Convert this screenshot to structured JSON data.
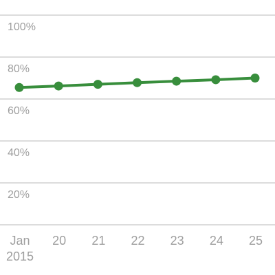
{
  "chart_data": {
    "type": "line",
    "x": [
      "Jan 19 2015",
      "Jan 20 2015",
      "Jan 21 2015",
      "Jan 22 2015",
      "Jan 23 2015",
      "Jan 24 2015",
      "Jan 25 2015"
    ],
    "x_tick_labels": [
      [
        "Jan",
        "2015"
      ],
      [
        "20"
      ],
      [
        "21"
      ],
      [
        "22"
      ],
      [
        "23"
      ],
      [
        "24"
      ],
      [
        "25"
      ]
    ],
    "y_tick_labels": [
      "100%",
      "80%",
      "60%",
      "40%",
      "20%"
    ],
    "y_ticks": [
      100,
      80,
      60,
      40,
      20,
      0
    ],
    "ylim": [
      0,
      100
    ],
    "series": [
      {
        "values": [
          65.5,
          66.2,
          67.0,
          67.8,
          68.5,
          69.2,
          70.0
        ],
        "color": "#388e3c"
      }
    ],
    "title": "",
    "xlabel": "",
    "ylabel": "",
    "grid": true,
    "legend": "none"
  }
}
